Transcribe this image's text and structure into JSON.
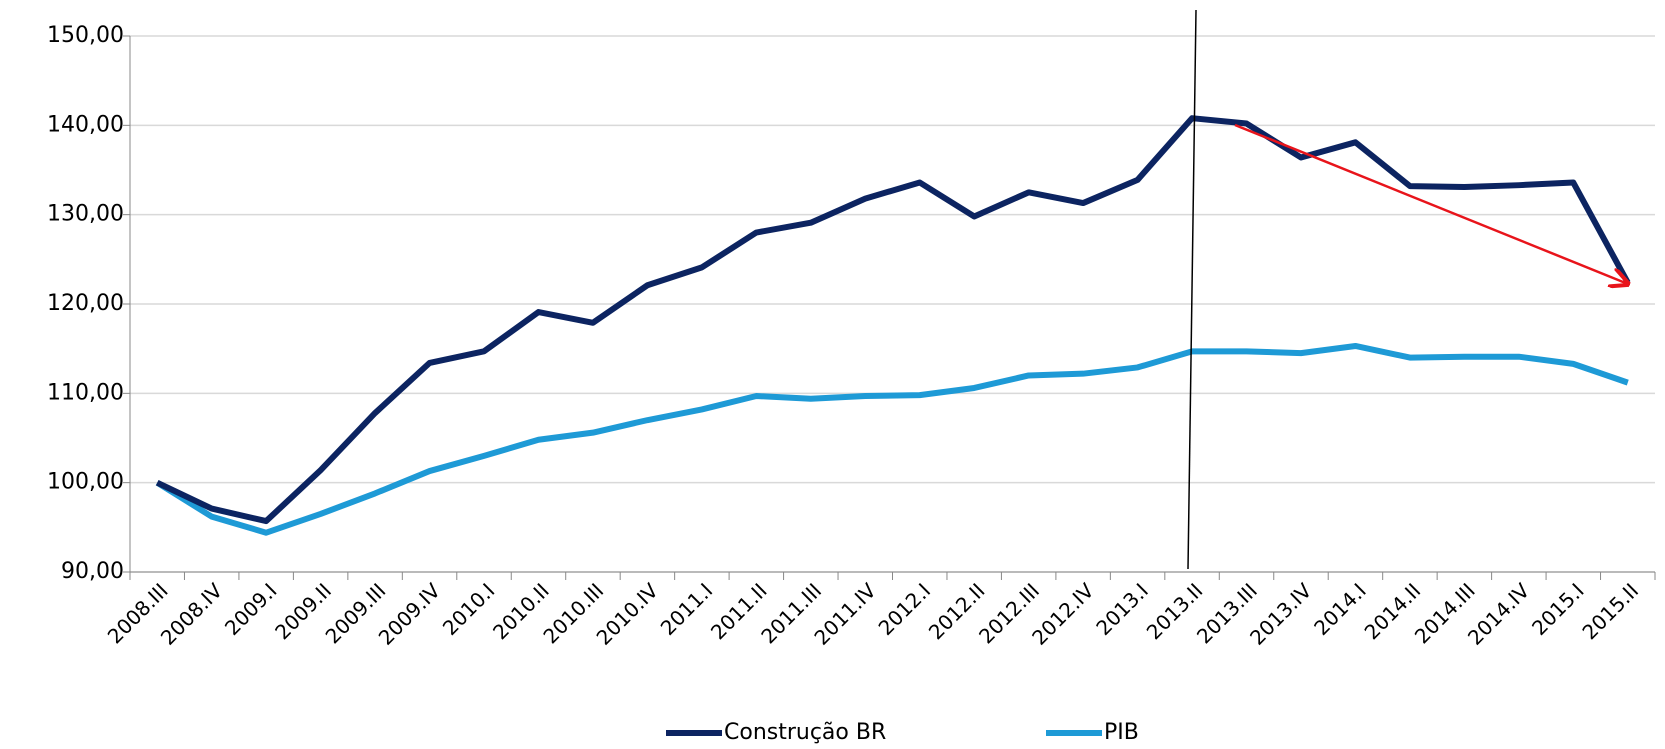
{
  "chart_data": {
    "type": "line",
    "categories": [
      "2008.III",
      "2008.IV",
      "2009.I",
      "2009.II",
      "2009.III",
      "2009.IV",
      "2010.I",
      "2010.II",
      "2010.III",
      "2010.IV",
      "2011.I",
      "2011.II",
      "2011.III",
      "2011.IV",
      "2012.I",
      "2012.II",
      "2012.III",
      "2012.IV",
      "2013.I",
      "2013.II",
      "2013.III",
      "2013.IV",
      "2014.I",
      "2014.II",
      "2014.III",
      "2014.IV",
      "2015.I",
      "2015.II"
    ],
    "series": [
      {
        "name": "Construção BR",
        "color": "#0c2461",
        "values": [
          100,
          97.1,
          95.7,
          101.4,
          107.8,
          113.4,
          114.7,
          119.1,
          117.9,
          122.1,
          124.1,
          128.0,
          129.1,
          131.8,
          133.6,
          129.8,
          132.5,
          131.3,
          133.9,
          140.8,
          140.2,
          136.4,
          138.1,
          133.2,
          133.1,
          133.3,
          133.6,
          122.4
        ]
      },
      {
        "name": "PIB",
        "color": "#1e9ad6",
        "values": [
          100,
          96.2,
          94.4,
          96.5,
          98.8,
          101.3,
          103.0,
          104.8,
          105.6,
          107.0,
          108.2,
          109.7,
          109.4,
          109.7,
          109.8,
          110.6,
          112.0,
          112.2,
          112.9,
          114.7,
          114.7,
          114.5,
          115.3,
          114.0,
          114.1,
          114.1,
          113.3,
          111.2
        ]
      }
    ],
    "ylim": [
      90,
      150
    ],
    "yticks": [
      {
        "value": 90,
        "label": "90,00"
      },
      {
        "value": 100,
        "label": "100,00"
      },
      {
        "value": 110,
        "label": "110,00"
      },
      {
        "value": 120,
        "label": "120,00"
      },
      {
        "value": 130,
        "label": "130,00"
      },
      {
        "value": 140,
        "label": "140,00"
      },
      {
        "value": 150,
        "label": "150,00"
      }
    ],
    "grid": true,
    "legend": "bottom"
  }
}
